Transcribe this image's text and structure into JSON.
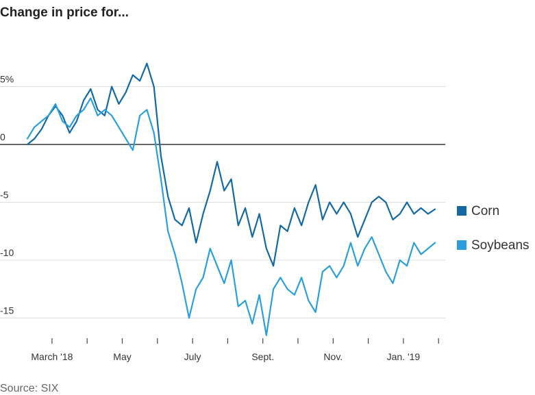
{
  "chart_data": {
    "type": "line",
    "title": "Change in price for...",
    "source": "Source: SIX",
    "ylabel": "",
    "xlabel": "",
    "ylim": [
      -16.5,
      8
    ],
    "xlim": [
      0,
      11.6
    ],
    "y_ticks": [
      {
        "value": 5,
        "label": "5%"
      },
      {
        "value": 0,
        "label": "0"
      },
      {
        "value": -5,
        "label": "-5"
      },
      {
        "value": -10,
        "label": "-10"
      },
      {
        "value": -15,
        "label": "-15"
      }
    ],
    "x_tick_marks": [
      1,
      2,
      3,
      4,
      5,
      6,
      7,
      8,
      9,
      10,
      11,
      12
    ],
    "x_tick_labels": [
      {
        "value": 1,
        "label": "March '18"
      },
      {
        "value": 3,
        "label": "May"
      },
      {
        "value": 5,
        "label": "July"
      },
      {
        "value": 7,
        "label": "Sept."
      },
      {
        "value": 9,
        "label": "Nov."
      },
      {
        "value": 11,
        "label": "Jan. '19"
      }
    ],
    "grid": true,
    "legend_position": "right",
    "colors": {
      "corn": "#1469a3",
      "soybeans": "#2a9fdc",
      "grid": "#dddddd",
      "zero": "#333333"
    },
    "series": [
      {
        "name": "Corn",
        "color": "#1469a3",
        "x": [
          0,
          0.2,
          0.4,
          0.6,
          0.8,
          1.0,
          1.2,
          1.4,
          1.6,
          1.8,
          2.0,
          2.2,
          2.4,
          2.6,
          2.8,
          3.0,
          3.2,
          3.4,
          3.6,
          3.8,
          4.0,
          4.2,
          4.4,
          4.6,
          4.8,
          5.0,
          5.2,
          5.4,
          5.6,
          5.8,
          6.0,
          6.2,
          6.4,
          6.6,
          6.8,
          7.0,
          7.2,
          7.4,
          7.6,
          7.8,
          8.0,
          8.2,
          8.4,
          8.6,
          8.8,
          9.0,
          9.2,
          9.4,
          9.6,
          9.8,
          10.0,
          10.2,
          10.4,
          10.6,
          10.8,
          11.0,
          11.2,
          11.4,
          11.6
        ],
        "values": [
          0,
          0.5,
          1.3,
          2.5,
          3.3,
          2.5,
          1.0,
          2.0,
          3.8,
          4.8,
          3.0,
          2.5,
          5.0,
          3.5,
          4.5,
          6.0,
          5.5,
          7.0,
          5.0,
          -1.0,
          -4.5,
          -6.5,
          -7.0,
          -5.5,
          -8.5,
          -6.0,
          -4.0,
          -1.5,
          -4.0,
          -3.0,
          -7.0,
          -5.5,
          -8.0,
          -6.0,
          -9.0,
          -10.5,
          -7.0,
          -7.5,
          -5.5,
          -7.0,
          -5.0,
          -3.5,
          -6.5,
          -5.0,
          -6.0,
          -5.0,
          -6.0,
          -8.0,
          -6.5,
          -5.0,
          -4.5,
          -5.0,
          -6.5,
          -6.0,
          -5.0,
          -6.0,
          -5.5,
          -6.0,
          -5.6
        ]
      },
      {
        "name": "Soybeans",
        "color": "#2a9fdc",
        "x": [
          0,
          0.2,
          0.4,
          0.6,
          0.8,
          1.0,
          1.2,
          1.4,
          1.6,
          1.8,
          2.0,
          2.2,
          2.4,
          2.6,
          2.8,
          3.0,
          3.2,
          3.4,
          3.6,
          3.8,
          4.0,
          4.2,
          4.4,
          4.6,
          4.8,
          5.0,
          5.2,
          5.4,
          5.6,
          5.8,
          6.0,
          6.2,
          6.4,
          6.6,
          6.8,
          7.0,
          7.2,
          7.4,
          7.6,
          7.8,
          8.0,
          8.2,
          8.4,
          8.6,
          8.8,
          9.0,
          9.2,
          9.4,
          9.6,
          9.8,
          10.0,
          10.2,
          10.4,
          10.6,
          10.8,
          11.0,
          11.2,
          11.4,
          11.6
        ],
        "values": [
          0.5,
          1.5,
          2.0,
          2.5,
          3.5,
          2.0,
          1.5,
          2.5,
          3.0,
          4.0,
          2.5,
          3.0,
          2.5,
          1.5,
          0.5,
          -0.5,
          2.5,
          3.0,
          1.0,
          -3.0,
          -7.5,
          -9.5,
          -12.0,
          -15.0,
          -12.5,
          -11.5,
          -9.0,
          -10.5,
          -12.0,
          -10.0,
          -14.0,
          -13.5,
          -15.5,
          -13.0,
          -16.5,
          -12.5,
          -11.5,
          -12.5,
          -13.0,
          -11.5,
          -13.5,
          -14.5,
          -11.0,
          -10.5,
          -11.5,
          -10.5,
          -8.5,
          -10.5,
          -9.0,
          -8.0,
          -9.5,
          -11.0,
          -12.0,
          -10.0,
          -10.5,
          -8.5,
          -9.5,
          -9.0,
          -8.5
        ]
      }
    ]
  }
}
